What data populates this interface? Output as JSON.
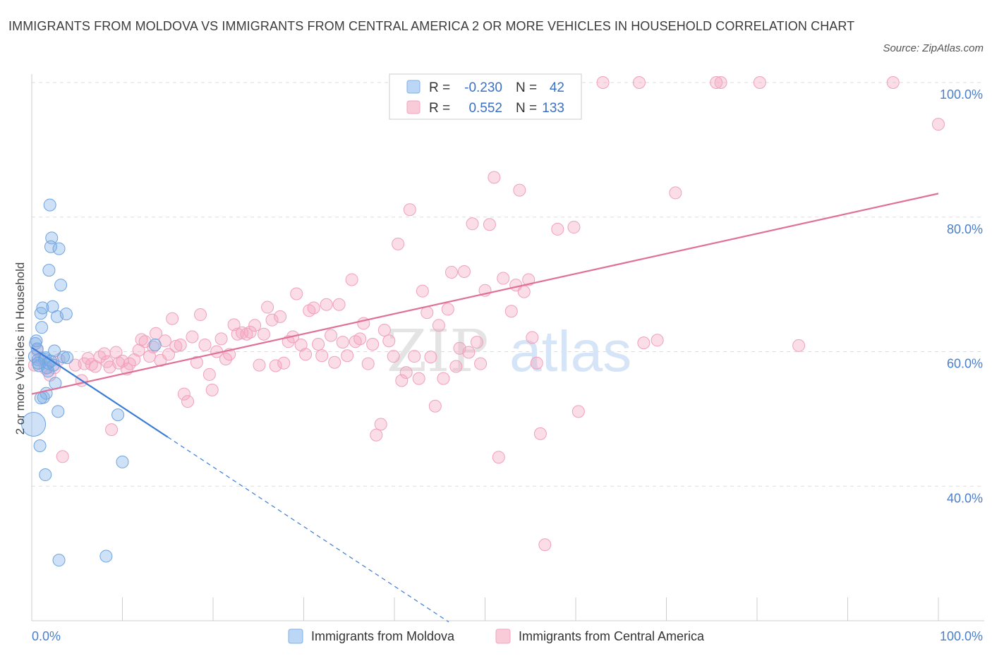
{
  "title": "IMMIGRANTS FROM MOLDOVA VS IMMIGRANTS FROM CENTRAL AMERICA 2 OR MORE VEHICLES IN HOUSEHOLD CORRELATION CHART",
  "source": "Source: ZipAtlas.com",
  "watermark": {
    "zip": "ZIP",
    "atlas": "atlas"
  },
  "colors": {
    "blue": "#7fb0e8",
    "blue_line": "#3a7bd5",
    "pink": "#f4a6bf",
    "pink_line": "#e0709a",
    "tick_text": "#4a7fcc",
    "grid": "#dddddd"
  },
  "legend": {
    "rows": [
      {
        "r_label": "R =",
        "r_value": "-0.230",
        "n_label": "N =",
        "n_value": "42"
      },
      {
        "r_label": "R =",
        "r_value": "0.552",
        "n_label": "N =",
        "n_value": "133"
      }
    ]
  },
  "chart_data": {
    "type": "scatter",
    "xlabel": "",
    "ylabel": "2 or more Vehicles in Household",
    "x_tick_labels": [
      "0.0%",
      "100.0%"
    ],
    "y_tick_labels": [
      "40.0%",
      "60.0%",
      "80.0%",
      "100.0%"
    ],
    "xlim": [
      0,
      100
    ],
    "ylim": [
      20,
      100
    ],
    "grid": true,
    "legend_position": "top-center",
    "series": [
      {
        "name": "Immigrants from Moldova",
        "color": "#7fb0e8",
        "r": -0.23,
        "n": 42,
        "trend": {
          "x0": 0,
          "y0": 60.6,
          "x1": 15,
          "y1": 47.3,
          "dash_to_x": 46
        },
        "points": [
          [
            0.2,
            49.2
          ],
          [
            0.3,
            59.3
          ],
          [
            0.4,
            61.2
          ],
          [
            0.5,
            61.6
          ],
          [
            0.6,
            60.4
          ],
          [
            0.7,
            58.8
          ],
          [
            0.8,
            57.9
          ],
          [
            0.9,
            46.0
          ],
          [
            1.0,
            65.7
          ],
          [
            1.1,
            63.6
          ],
          [
            1.2,
            66.5
          ],
          [
            1.3,
            53.2
          ],
          [
            1.4,
            58.9
          ],
          [
            1.5,
            59.1
          ],
          [
            1.6,
            53.8
          ],
          [
            1.7,
            57.6
          ],
          [
            1.8,
            57.1
          ],
          [
            1.9,
            72.1
          ],
          [
            2.0,
            81.8
          ],
          [
            2.1,
            75.6
          ],
          [
            2.2,
            76.9
          ],
          [
            2.3,
            66.7
          ],
          [
            2.4,
            58.0
          ],
          [
            2.5,
            60.1
          ],
          [
            2.6,
            55.3
          ],
          [
            2.8,
            65.2
          ],
          [
            2.9,
            51.1
          ],
          [
            3.0,
            75.3
          ],
          [
            3.2,
            69.9
          ],
          [
            3.5,
            59.2
          ],
          [
            3.8,
            65.6
          ],
          [
            3.9,
            59.1
          ],
          [
            1.5,
            41.7
          ],
          [
            1.0,
            53.1
          ],
          [
            1.8,
            58.3
          ],
          [
            0.7,
            58.3
          ],
          [
            2.1,
            58.6
          ],
          [
            3.0,
            29.0
          ],
          [
            8.2,
            29.6
          ],
          [
            9.5,
            50.6
          ],
          [
            10.0,
            43.6
          ],
          [
            13.6,
            61.0
          ]
        ]
      },
      {
        "name": "Immigrants from Central America",
        "color": "#f4a6bf",
        "r": 0.552,
        "n": 133,
        "trend": {
          "x0": 0,
          "y0": 53.7,
          "x1": 100,
          "y1": 83.5
        },
        "points": [
          [
            0.3,
            58.0
          ],
          [
            0.6,
            60.2
          ],
          [
            1.0,
            59.0
          ],
          [
            1.5,
            57.5
          ],
          [
            2.0,
            56.5
          ],
          [
            2.5,
            57.6
          ],
          [
            3.0,
            58.8
          ],
          [
            3.4,
            44.4
          ],
          [
            4.8,
            58.0
          ],
          [
            5.5,
            55.7
          ],
          [
            5.8,
            58.2
          ],
          [
            6.2,
            59.0
          ],
          [
            6.6,
            58.1
          ],
          [
            7.0,
            57.8
          ],
          [
            7.5,
            59.2
          ],
          [
            8.0,
            59.7
          ],
          [
            8.3,
            58.5
          ],
          [
            8.6,
            57.7
          ],
          [
            8.8,
            48.4
          ],
          [
            9.3,
            59.9
          ],
          [
            9.6,
            58.3
          ],
          [
            10.0,
            58.6
          ],
          [
            10.5,
            57.4
          ],
          [
            10.8,
            58.2
          ],
          [
            11.3,
            58.8
          ],
          [
            11.8,
            60.2
          ],
          [
            12.1,
            61.8
          ],
          [
            12.5,
            61.5
          ],
          [
            13.0,
            59.3
          ],
          [
            13.4,
            60.7
          ],
          [
            13.7,
            62.7
          ],
          [
            14.2,
            58.7
          ],
          [
            14.7,
            61.6
          ],
          [
            15.1,
            59.6
          ],
          [
            15.5,
            64.9
          ],
          [
            15.9,
            60.8
          ],
          [
            16.4,
            61.0
          ],
          [
            16.8,
            53.7
          ],
          [
            17.2,
            52.6
          ],
          [
            17.7,
            62.2
          ],
          [
            18.2,
            58.4
          ],
          [
            18.6,
            65.5
          ],
          [
            19.1,
            61.0
          ],
          [
            19.6,
            56.6
          ],
          [
            19.9,
            54.3
          ],
          [
            20.4,
            60.0
          ],
          [
            20.9,
            61.9
          ],
          [
            21.4,
            58.9
          ],
          [
            21.8,
            59.6
          ],
          [
            22.3,
            64.0
          ],
          [
            22.7,
            62.6
          ],
          [
            23.2,
            62.8
          ],
          [
            23.7,
            62.6
          ],
          [
            24.1,
            62.9
          ],
          [
            24.6,
            63.9
          ],
          [
            25.1,
            58.0
          ],
          [
            25.6,
            62.6
          ],
          [
            26.0,
            66.6
          ],
          [
            26.5,
            64.7
          ],
          [
            26.9,
            57.9
          ],
          [
            27.4,
            65.2
          ],
          [
            27.8,
            58.3
          ],
          [
            28.3,
            61.5
          ],
          [
            28.8,
            62.2
          ],
          [
            29.2,
            68.6
          ],
          [
            29.7,
            61.0
          ],
          [
            30.2,
            59.6
          ],
          [
            30.6,
            66.1
          ],
          [
            31.1,
            66.5
          ],
          [
            31.6,
            61.1
          ],
          [
            32.0,
            59.4
          ],
          [
            32.5,
            67.0
          ],
          [
            33.0,
            62.4
          ],
          [
            33.4,
            58.4
          ],
          [
            33.9,
            67.0
          ],
          [
            34.3,
            61.4
          ],
          [
            34.8,
            59.4
          ],
          [
            35.3,
            70.7
          ],
          [
            35.7,
            61.5
          ],
          [
            36.2,
            61.9
          ],
          [
            36.6,
            64.2
          ],
          [
            37.1,
            58.2
          ],
          [
            37.6,
            61.1
          ],
          [
            38.0,
            47.6
          ],
          [
            38.5,
            49.2
          ],
          [
            38.9,
            63.2
          ],
          [
            39.4,
            61.6
          ],
          [
            39.9,
            59.3
          ],
          [
            40.4,
            76.0
          ],
          [
            40.8,
            55.7
          ],
          [
            41.3,
            56.9
          ],
          [
            41.7,
            81.1
          ],
          [
            42.2,
            59.3
          ],
          [
            42.7,
            56.0
          ],
          [
            43.1,
            69.0
          ],
          [
            43.6,
            65.8
          ],
          [
            44.0,
            59.2
          ],
          [
            44.5,
            51.9
          ],
          [
            44.9,
            63.9
          ],
          [
            45.4,
            56.0
          ],
          [
            45.9,
            66.3
          ],
          [
            46.3,
            71.8
          ],
          [
            46.8,
            57.8
          ],
          [
            47.2,
            60.5
          ],
          [
            47.7,
            71.9
          ],
          [
            48.2,
            59.9
          ],
          [
            48.6,
            79.0
          ],
          [
            49.1,
            61.4
          ],
          [
            49.5,
            58.2
          ],
          [
            50.0,
            69.1
          ],
          [
            50.5,
            78.9
          ],
          [
            51.0,
            85.9
          ],
          [
            51.5,
            44.3
          ],
          [
            52.0,
            70.9
          ],
          [
            52.5,
            100.0
          ],
          [
            52.9,
            66.0
          ],
          [
            53.4,
            69.9
          ],
          [
            53.8,
            84.0
          ],
          [
            54.3,
            68.9
          ],
          [
            54.8,
            70.7
          ],
          [
            55.2,
            62.1
          ],
          [
            55.7,
            58.3
          ],
          [
            56.1,
            47.8
          ],
          [
            56.6,
            31.3
          ],
          [
            57.1,
            97.0
          ],
          [
            57.5,
            100.0
          ],
          [
            58.0,
            78.2
          ],
          [
            59.8,
            78.5
          ],
          [
            60.3,
            51.1
          ],
          [
            63.0,
            100.0
          ],
          [
            67.0,
            100.0
          ],
          [
            67.5,
            61.3
          ],
          [
            69.0,
            61.7
          ],
          [
            71.0,
            83.6
          ],
          [
            76.0,
            100.0
          ],
          [
            75.5,
            100.0
          ],
          [
            80.3,
            100.0
          ],
          [
            84.6,
            60.9
          ],
          [
            95.0,
            100.0
          ],
          [
            100.0,
            93.8
          ]
        ]
      }
    ]
  }
}
